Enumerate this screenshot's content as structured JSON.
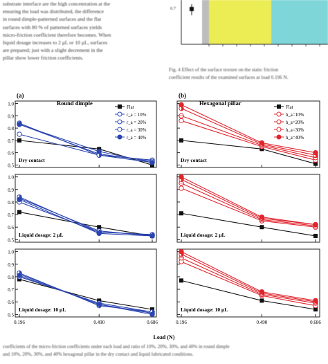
{
  "page": {
    "body_lines": [
      "substrate interface are the high concentration at the",
      "ensuring the load was distributed, the difference",
      "in round dimple-patterned surfaces and the flat",
      "surfaces with 80 % of patterned surfaces yields",
      "micro-friction coefficient therefore becomes. When",
      "liquid dosage increases to 2 μL or 10 μL, surfaces",
      "are prepared; just with a slight decrement in the",
      "pillar show lower friction coefficients."
    ],
    "fig4_caption_lines": [
      "Fig. 4 Effect of the surface texture on the static friction",
      "coefficient results of the examined surfaces at load 0.196 N."
    ],
    "bottom_caption_lines": [
      "coefficients of the micro-friction coefficients under each load and ratio of 10%, 20%, 30%, and 40% in round dimple",
      "and 10%, 20%, 30%, and 40% hexagonal pillar in the dry contact and liquid lubricated conditions."
    ],
    "inset": {
      "y_tick": "0.7"
    },
    "colors": {
      "flat": "#111111",
      "round": "#2a44b0",
      "hex": "#e0242c",
      "inset_yellow": "#ecec55",
      "inset_cyan": "#7fd6d8",
      "inset_gray": "#bdbdbd"
    },
    "panels": {
      "left_header": "(a)",
      "right_header": "(b)",
      "left_title": "Round dimple",
      "right_title": "Hexagonal pillar",
      "rows": [
        {
          "label_left": "Dry contact",
          "label_right": "Dry contact"
        },
        {
          "label_left": "Liquid dosage: 2 μL",
          "label_right": "Liquid dosage: 2 μL"
        },
        {
          "label_left": "Liquid dosage: 10 μL",
          "label_right": "Liquid dosage: 10 μL"
        }
      ],
      "y_ticks": [
        "0.5",
        "0.6",
        "0.7",
        "0.8",
        "0.9",
        "1.0"
      ],
      "x_ticks": [
        "0.196",
        "0.490",
        "0.686"
      ],
      "xlabel": "Load (N)",
      "legend_left": [
        "Flat",
        "r_a = 10%",
        "r_a = 20%",
        "r_a = 30%",
        "r_a = 40%"
      ],
      "legend_right": [
        "Flat",
        "h_a=10%",
        "h_a=20%",
        "h_a=30%",
        "h_a=40%"
      ]
    }
  },
  "chart_data": [
    {
      "type": "line",
      "panel": "round-dimple-dry",
      "x": [
        0.196,
        0.49,
        0.686
      ],
      "ylim": [
        0.48,
        1.02
      ],
      "series": [
        {
          "name": "Flat",
          "values": [
            0.7,
            0.63,
            0.5
          ]
        },
        {
          "name": "r_a = 10%",
          "values": [
            0.75,
            0.58,
            0.54
          ]
        },
        {
          "name": "r_a = 20%",
          "values": [
            0.83,
            0.59,
            0.53
          ]
        },
        {
          "name": "r_a = 30%",
          "values": [
            0.84,
            0.58,
            0.52
          ]
        },
        {
          "name": "r_a = 40%",
          "values": [
            0.83,
            0.61,
            0.52
          ]
        }
      ]
    },
    {
      "type": "line",
      "panel": "round-dimple-2uL",
      "x": [
        0.196,
        0.49,
        0.686
      ],
      "ylim": [
        0.48,
        1.02
      ],
      "series": [
        {
          "name": "Flat",
          "values": [
            0.72,
            0.6,
            0.53
          ]
        },
        {
          "name": "r_a = 10%",
          "values": [
            0.8,
            0.56,
            0.54
          ]
        },
        {
          "name": "r_a = 20%",
          "values": [
            0.83,
            0.57,
            0.53
          ]
        },
        {
          "name": "r_a = 30%",
          "values": [
            0.84,
            0.56,
            0.54
          ]
        },
        {
          "name": "r_a = 40%",
          "values": [
            0.82,
            0.55,
            0.53
          ]
        }
      ]
    },
    {
      "type": "line",
      "panel": "round-dimple-10uL",
      "x": [
        0.196,
        0.49,
        0.686
      ],
      "ylim": [
        0.48,
        1.02
      ],
      "series": [
        {
          "name": "Flat",
          "values": [
            0.78,
            0.61,
            0.54
          ]
        },
        {
          "name": "r_a = 10%",
          "values": [
            0.8,
            0.59,
            0.52
          ]
        },
        {
          "name": "r_a = 20%",
          "values": [
            0.82,
            0.58,
            0.51
          ]
        },
        {
          "name": "r_a = 30%",
          "values": [
            0.83,
            0.57,
            0.52
          ]
        },
        {
          "name": "r_a = 40%",
          "values": [
            0.81,
            0.58,
            0.5
          ]
        }
      ]
    },
    {
      "type": "line",
      "panel": "hexagonal-pillar-dry",
      "x": [
        0.196,
        0.49,
        0.686
      ],
      "ylim": [
        0.48,
        1.02
      ],
      "series": [
        {
          "name": "Flat",
          "values": [
            0.7,
            0.63,
            0.51
          ]
        },
        {
          "name": "h_a=10%",
          "values": [
            0.86,
            0.65,
            0.54
          ]
        },
        {
          "name": "h_a=20%",
          "values": [
            0.9,
            0.66,
            0.56
          ]
        },
        {
          "name": "h_a=30%",
          "values": [
            0.96,
            0.67,
            0.58
          ]
        },
        {
          "name": "h_a=40%",
          "values": [
            0.99,
            0.68,
            0.6
          ]
        }
      ]
    },
    {
      "type": "line",
      "panel": "hexagonal-pillar-2uL",
      "x": [
        0.196,
        0.49,
        0.686
      ],
      "ylim": [
        0.48,
        1.02
      ],
      "series": [
        {
          "name": "Flat",
          "values": [
            0.71,
            0.6,
            0.53
          ]
        },
        {
          "name": "h_a=10%",
          "values": [
            0.91,
            0.65,
            0.6
          ]
        },
        {
          "name": "h_a=20%",
          "values": [
            0.95,
            0.66,
            0.61
          ]
        },
        {
          "name": "h_a=30%",
          "values": [
            0.98,
            0.67,
            0.62
          ]
        },
        {
          "name": "h_a=40%",
          "values": [
            1.0,
            0.68,
            0.62
          ]
        }
      ]
    },
    {
      "type": "line",
      "panel": "hexagonal-pillar-10uL",
      "x": [
        0.196,
        0.49,
        0.686
      ],
      "ylim": [
        0.48,
        1.02
      ],
      "series": [
        {
          "name": "Flat",
          "values": [
            0.77,
            0.61,
            0.54
          ]
        },
        {
          "name": "h_a=10%",
          "values": [
            0.92,
            0.65,
            0.57
          ]
        },
        {
          "name": "h_a=20%",
          "values": [
            0.95,
            0.66,
            0.59
          ]
        },
        {
          "name": "h_a=30%",
          "values": [
            0.98,
            0.67,
            0.6
          ]
        },
        {
          "name": "h_a=40%",
          "values": [
            1.0,
            0.68,
            0.61
          ]
        }
      ]
    }
  ]
}
